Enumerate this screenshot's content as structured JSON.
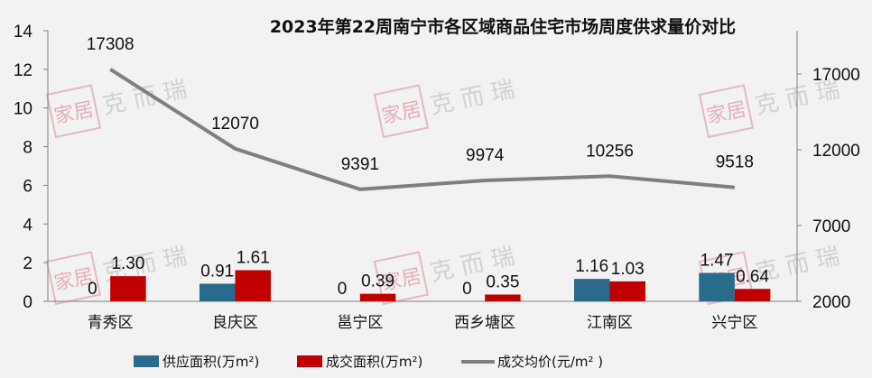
{
  "chart_data": {
    "type": "bar+line",
    "title": "2023年第22周南宁市各区域商品住宅市场周度供求量价对比",
    "categories": [
      "青秀区",
      "良庆区",
      "邕宁区",
      "西乡塘区",
      "江南区",
      "兴宁区"
    ],
    "series": [
      {
        "name": "供应面积(万m²)",
        "type": "bar",
        "axis": "left",
        "color": "#2a6a8a",
        "values": [
          0,
          0.91,
          0,
          0,
          1.16,
          1.47
        ],
        "labels": [
          "0",
          "0.91",
          "0",
          "0",
          "1.16",
          "1.47"
        ]
      },
      {
        "name": "成交面积(万m²)",
        "type": "bar",
        "axis": "left",
        "color": "#c00000",
        "values": [
          1.3,
          1.61,
          0.39,
          0.35,
          1.03,
          0.64
        ],
        "labels": [
          "1.30",
          "1.61",
          "0.39",
          "0.35",
          "1.03",
          "0.64"
        ]
      },
      {
        "name": "成交均价(元/m² )",
        "type": "line",
        "axis": "right",
        "color": "#7f7f7f",
        "values": [
          17308,
          12070,
          9391,
          9974,
          10256,
          9518
        ],
        "labels": [
          "17308",
          "12070",
          "9391",
          "9974",
          "10256",
          "9518"
        ]
      }
    ],
    "left_axis": {
      "ticks": [
        "0",
        "2",
        "4",
        "6",
        "8",
        "10",
        "12",
        "14"
      ],
      "ylim": [
        0,
        14
      ]
    },
    "right_axis": {
      "ticks": [
        "2000",
        "7000",
        "12000",
        "17000"
      ],
      "ylim": [
        2000,
        19857
      ]
    },
    "xlabel": "",
    "ylabel": "",
    "legend_position": "bottom",
    "grid": false
  },
  "watermark": {
    "seal": "家居",
    "text": "克 而 瑞"
  }
}
